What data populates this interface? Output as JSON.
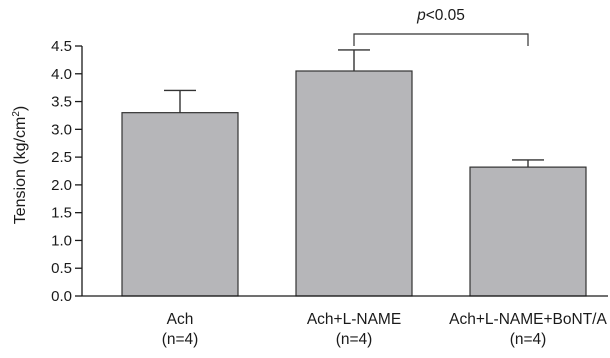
{
  "chart_data": {
    "type": "bar",
    "categories": [
      "Ach",
      "Ach+L-NAME",
      "Ach+L-NAME+BoNT/A"
    ],
    "sample_sizes": [
      "(n=4)",
      "(n=4)",
      "(n=4)"
    ],
    "values": [
      3.3,
      4.05,
      2.32
    ],
    "error_upper": [
      3.7,
      4.43,
      2.45
    ],
    "ylabel": {
      "prefix": "Tension (kg/cm",
      "superscript": "2",
      "suffix": ")"
    },
    "ylim": [
      0,
      4.5
    ],
    "yticks": [
      "0.0",
      "0.5",
      "1.0",
      "1.5",
      "2.0",
      "2.5",
      "3.0",
      "3.5",
      "4.0",
      "4.5"
    ],
    "grid": false,
    "bar_color": "#b6b6b9",
    "annotation": {
      "between": [
        1,
        2
      ],
      "italic_text": "p",
      "text": "<0.05"
    }
  }
}
